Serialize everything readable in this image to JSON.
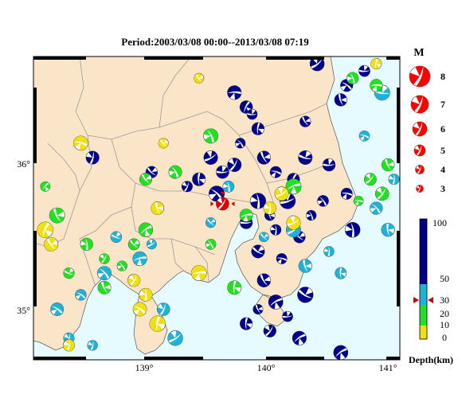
{
  "title": "Period:2003/03/08 00:00--2013/03/08 07:19",
  "map": {
    "lon_range": [
      138.0,
      141.1
    ],
    "lat_range": [
      34.7,
      36.8
    ],
    "x_ticks": [
      "139°",
      "140°",
      "141°"
    ],
    "y_ticks": [
      "36°",
      "35°"
    ],
    "colors": {
      "land": "#fbe5c8",
      "sea": "#e6fbff",
      "border": "#9a9a9a"
    }
  },
  "magnitude_legend": {
    "title": "M",
    "items": [
      "8",
      "7",
      "6",
      "5",
      "4",
      "3"
    ],
    "color": "#ff0000"
  },
  "depth_scale": {
    "label": "Depth(km)",
    "ticks": [
      "100",
      "50",
      "30",
      "20",
      "10",
      "0"
    ],
    "colors": [
      "#00008b",
      "#1fb2d8",
      "#22e022",
      "#f0e010"
    ]
  },
  "featured_event": {
    "lon": 139.6,
    "lat": 35.78,
    "color": "red"
  },
  "events": [
    {
      "lon": 139.8,
      "lat": 36.45,
      "d": "deep"
    },
    {
      "lon": 139.85,
      "lat": 36.4,
      "d": "deep"
    },
    {
      "lon": 139.9,
      "lat": 36.3,
      "d": "deep"
    },
    {
      "lon": 139.75,
      "lat": 36.2,
      "d": "deep"
    },
    {
      "lon": 139.95,
      "lat": 36.1,
      "d": "deep"
    },
    {
      "lon": 140.05,
      "lat": 36.0,
      "d": "deep"
    },
    {
      "lon": 139.7,
      "lat": 36.05,
      "d": "deep"
    },
    {
      "lon": 139.6,
      "lat": 36.0,
      "d": "deep"
    },
    {
      "lon": 139.5,
      "lat": 36.1,
      "d": "deep"
    },
    {
      "lon": 139.4,
      "lat": 35.95,
      "d": "deep"
    },
    {
      "lon": 139.3,
      "lat": 35.9,
      "d": "deep"
    },
    {
      "lon": 139.9,
      "lat": 35.8,
      "d": "deep"
    },
    {
      "lon": 140.0,
      "lat": 35.7,
      "d": "deep"
    },
    {
      "lon": 140.15,
      "lat": 35.8,
      "d": "deep"
    },
    {
      "lon": 140.2,
      "lat": 35.95,
      "d": "deep"
    },
    {
      "lon": 140.3,
      "lat": 36.1,
      "d": "deep"
    },
    {
      "lon": 140.05,
      "lat": 35.6,
      "d": "deep"
    },
    {
      "lon": 139.8,
      "lat": 35.65,
      "d": "deep"
    },
    {
      "lon": 139.9,
      "lat": 35.45,
      "d": "deep"
    },
    {
      "lon": 140.1,
      "lat": 35.4,
      "d": "deep"
    },
    {
      "lon": 140.25,
      "lat": 35.55,
      "d": "deep"
    },
    {
      "lon": 140.35,
      "lat": 35.7,
      "d": "deep"
    },
    {
      "lon": 140.45,
      "lat": 35.8,
      "d": "deep"
    },
    {
      "lon": 140.5,
      "lat": 36.05,
      "d": "deep"
    },
    {
      "lon": 139.95,
      "lat": 35.25,
      "d": "deep"
    },
    {
      "lon": 140.05,
      "lat": 35.1,
      "d": "deep"
    },
    {
      "lon": 140.15,
      "lat": 35.0,
      "d": "deep"
    },
    {
      "lon": 140.0,
      "lat": 34.9,
      "d": "deep"
    },
    {
      "lon": 139.9,
      "lat": 35.05,
      "d": "deep"
    },
    {
      "lon": 140.25,
      "lat": 34.85,
      "d": "deep"
    },
    {
      "lon": 140.3,
      "lat": 35.15,
      "d": "deep"
    },
    {
      "lon": 139.8,
      "lat": 34.95,
      "d": "deep"
    },
    {
      "lon": 140.65,
      "lat": 36.6,
      "d": "deep"
    },
    {
      "lon": 140.6,
      "lat": 36.5,
      "d": "deep"
    },
    {
      "lon": 140.8,
      "lat": 36.7,
      "d": "deep"
    },
    {
      "lon": 140.4,
      "lat": 36.75,
      "d": "deep"
    },
    {
      "lon": 140.65,
      "lat": 35.85,
      "d": "deep"
    },
    {
      "lon": 140.7,
      "lat": 35.6,
      "d": "deep"
    },
    {
      "lon": 139.55,
      "lat": 35.85,
      "d": "deep"
    },
    {
      "lon": 140.6,
      "lat": 34.75,
      "d": "deep"
    },
    {
      "lon": 138.5,
      "lat": 36.1,
      "d": "deep"
    },
    {
      "lon": 139.0,
      "lat": 36.0,
      "d": "deep"
    },
    {
      "lon": 140.3,
      "lat": 36.35,
      "d": "deep"
    },
    {
      "lon": 139.7,
      "lat": 36.55,
      "d": "deep"
    },
    {
      "lon": 139.65,
      "lat": 35.9,
      "d": "mid"
    },
    {
      "lon": 139.95,
      "lat": 35.55,
      "d": "mid"
    },
    {
      "lon": 140.3,
      "lat": 35.35,
      "d": "mid"
    },
    {
      "lon": 140.5,
      "lat": 35.45,
      "d": "mid"
    },
    {
      "lon": 140.9,
      "lat": 35.75,
      "d": "mid"
    },
    {
      "lon": 141.0,
      "lat": 35.6,
      "d": "mid"
    },
    {
      "lon": 140.8,
      "lat": 36.25,
      "d": "mid"
    },
    {
      "lon": 140.95,
      "lat": 36.55,
      "d": "mid"
    },
    {
      "lon": 139.0,
      "lat": 35.5,
      "d": "mid"
    },
    {
      "lon": 138.9,
      "lat": 35.4,
      "d": "mid"
    },
    {
      "lon": 138.6,
      "lat": 35.3,
      "d": "mid"
    },
    {
      "lon": 138.4,
      "lat": 35.15,
      "d": "mid"
    },
    {
      "lon": 138.3,
      "lat": 34.85,
      "d": "mid"
    },
    {
      "lon": 138.5,
      "lat": 34.8,
      "d": "mid"
    },
    {
      "lon": 138.2,
      "lat": 35.05,
      "d": "mid"
    },
    {
      "lon": 139.2,
      "lat": 34.85,
      "d": "mid"
    },
    {
      "lon": 139.1,
      "lat": 35.05,
      "d": "mid"
    },
    {
      "lon": 140.6,
      "lat": 35.3,
      "d": "mid"
    },
    {
      "lon": 139.5,
      "lat": 35.65,
      "d": "mid"
    },
    {
      "lon": 138.7,
      "lat": 35.55,
      "d": "mid"
    },
    {
      "lon": 140.2,
      "lat": 35.6,
      "d": "mid"
    },
    {
      "lon": 141.05,
      "lat": 35.95,
      "d": "mid"
    },
    {
      "lon": 140.95,
      "lat": 35.85,
      "d": "shallow"
    },
    {
      "lon": 140.85,
      "lat": 35.95,
      "d": "shallow"
    },
    {
      "lon": 141.0,
      "lat": 36.05,
      "d": "shallow"
    },
    {
      "lon": 140.75,
      "lat": 35.8,
      "d": "shallow"
    },
    {
      "lon": 140.9,
      "lat": 36.6,
      "d": "shallow"
    },
    {
      "lon": 140.7,
      "lat": 36.65,
      "d": "shallow"
    },
    {
      "lon": 138.95,
      "lat": 35.6,
      "d": "shallow"
    },
    {
      "lon": 138.85,
      "lat": 35.5,
      "d": "shallow"
    },
    {
      "lon": 138.75,
      "lat": 35.35,
      "d": "shallow"
    },
    {
      "lon": 138.6,
      "lat": 35.4,
      "d": "shallow"
    },
    {
      "lon": 138.3,
      "lat": 35.3,
      "d": "shallow"
    },
    {
      "lon": 138.1,
      "lat": 35.9,
      "d": "shallow"
    },
    {
      "lon": 138.95,
      "lat": 35.95,
      "d": "shallow"
    },
    {
      "lon": 139.2,
      "lat": 36.0,
      "d": "shallow"
    },
    {
      "lon": 138.6,
      "lat": 35.2,
      "d": "shallow"
    },
    {
      "lon": 139.5,
      "lat": 35.5,
      "d": "shallow"
    },
    {
      "lon": 139.7,
      "lat": 35.2,
      "d": "shallow"
    },
    {
      "lon": 140.2,
      "lat": 35.9,
      "d": "shallow"
    },
    {
      "lon": 138.45,
      "lat": 35.5,
      "d": "shallow"
    },
    {
      "lon": 138.2,
      "lat": 35.7,
      "d": "shallow"
    },
    {
      "lon": 139.8,
      "lat": 35.7,
      "d": "shallow"
    },
    {
      "lon": 139.5,
      "lat": 36.25,
      "d": "shallow"
    },
    {
      "lon": 138.95,
      "lat": 35.15,
      "d": "vshallow"
    },
    {
      "lon": 138.9,
      "lat": 35.05,
      "d": "vshallow"
    },
    {
      "lon": 138.85,
      "lat": 35.25,
      "d": "vshallow"
    },
    {
      "lon": 138.1,
      "lat": 35.6,
      "d": "vshallow"
    },
    {
      "lon": 138.15,
      "lat": 35.5,
      "d": "vshallow"
    },
    {
      "lon": 138.4,
      "lat": 36.2,
      "d": "vshallow"
    },
    {
      "lon": 139.05,
      "lat": 35.75,
      "d": "vshallow"
    },
    {
      "lon": 139.4,
      "lat": 35.3,
      "d": "vshallow"
    },
    {
      "lon": 139.1,
      "lat": 36.2,
      "d": "vshallow"
    },
    {
      "lon": 140.0,
      "lat": 35.75,
      "d": "vshallow"
    },
    {
      "lon": 140.1,
      "lat": 35.85,
      "d": "vshallow"
    },
    {
      "lon": 140.2,
      "lat": 35.65,
      "d": "vshallow"
    },
    {
      "lon": 140.9,
      "lat": 36.75,
      "d": "vshallow"
    },
    {
      "lon": 138.3,
      "lat": 34.8,
      "d": "vshallow"
    },
    {
      "lon": 139.05,
      "lat": 34.95,
      "d": "vshallow"
    },
    {
      "lon": 139.4,
      "lat": 36.65,
      "d": "vshallow"
    }
  ]
}
